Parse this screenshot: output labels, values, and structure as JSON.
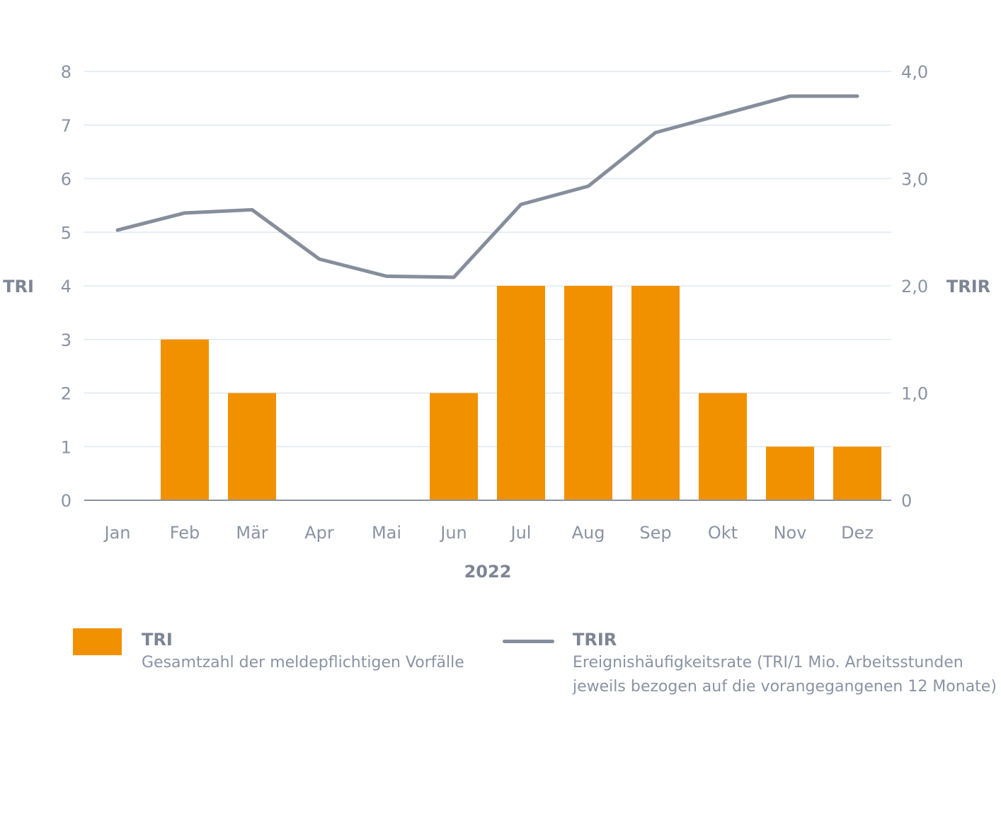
{
  "chart_data": {
    "type": "bar",
    "categories": [
      "Jan",
      "Feb",
      "Mär",
      "Apr",
      "Mai",
      "Jun",
      "Jul",
      "Aug",
      "Sep",
      "Okt",
      "Nov",
      "Dez"
    ],
    "series": [
      {
        "name": "TRI",
        "type": "bar",
        "axis": "left",
        "color": "#f29100",
        "values": [
          0,
          3,
          2,
          0,
          0,
          2,
          4,
          4,
          4,
          2,
          1,
          1
        ]
      },
      {
        "name": "TRIR",
        "type": "line",
        "axis": "right",
        "color": "#868e9c",
        "values": [
          2.52,
          2.68,
          2.71,
          2.25,
          2.09,
          2.08,
          2.76,
          2.93,
          3.43,
          3.6,
          3.77,
          3.77
        ]
      }
    ],
    "xlabel": "2022",
    "ylabel": "TRI",
    "ylabel_right": "TRIR",
    "ylim": [
      0,
      8
    ],
    "ylim_right": [
      0,
      4
    ],
    "yticks": [
      "0",
      "1",
      "2",
      "3",
      "4",
      "5",
      "6",
      "7",
      "8"
    ],
    "yticks_right": [
      "0",
      "1,0",
      "2,0",
      "3,0",
      "4,0"
    ],
    "grid": true,
    "legend_position": "bottom"
  },
  "legend": {
    "tri_title": "TRI",
    "tri_desc": "Gesamtzahl der meldepflichtigen Vorfälle",
    "trir_title": "TRIR",
    "trir_desc_line1": "Ereignishäufigkeitsrate (TRI/1 Mio. Arbeitsstunden",
    "trir_desc_line2": "jeweils bezogen auf die vorangegangenen 12 Monate)"
  },
  "colors": {
    "bar": "#f29100",
    "line": "#868e9c",
    "grid": "#dde9f2",
    "axis": "#8a93a3"
  }
}
